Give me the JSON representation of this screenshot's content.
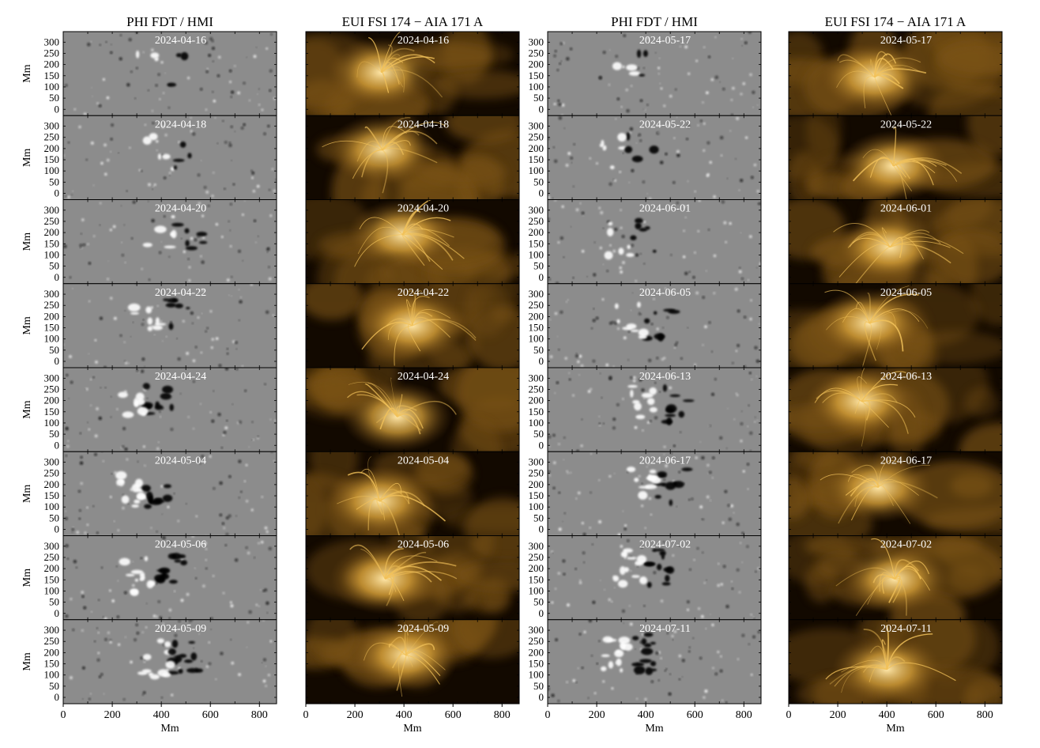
{
  "columns": [
    {
      "title": "PHI FDT / HMI",
      "type": "magnetogram",
      "dates": [
        "2024-04-16",
        "2024-04-18",
        "2024-04-20",
        "2024-04-22",
        "2024-04-24",
        "2024-05-04",
        "2024-05-06",
        "2024-05-09"
      ]
    },
    {
      "title": "EUI FSI 174 − AIA 171 A",
      "type": "euv",
      "dates": [
        "2024-04-16",
        "2024-04-18",
        "2024-04-20",
        "2024-04-22",
        "2024-04-24",
        "2024-05-04",
        "2024-05-06",
        "2024-05-09"
      ]
    },
    {
      "title": "PHI FDT / HMI",
      "type": "magnetogram",
      "dates": [
        "2024-05-17",
        "2024-05-22",
        "2024-06-01",
        "2024-06-05",
        "2024-06-13",
        "2024-06-17",
        "2024-07-02",
        "2024-07-11"
      ]
    },
    {
      "title": "EUI FSI 174 − AIA 171 A",
      "type": "euv",
      "dates": [
        "2024-05-17",
        "2024-05-22",
        "2024-06-01",
        "2024-06-05",
        "2024-06-13",
        "2024-06-17",
        "2024-07-02",
        "2024-07-11"
      ]
    }
  ],
  "axes": {
    "x_label": "Mm",
    "y_label": "Mm",
    "x_ticks": [
      "0",
      "200",
      "400",
      "600",
      "800"
    ],
    "y_ticks": [
      "0",
      "50",
      "100",
      "150",
      "200",
      "250",
      "300"
    ]
  },
  "colors": {
    "magnetogram_bg": "#8c8c8c",
    "euv_dark": "#120900",
    "euv_bright": "#f2c25a"
  }
}
